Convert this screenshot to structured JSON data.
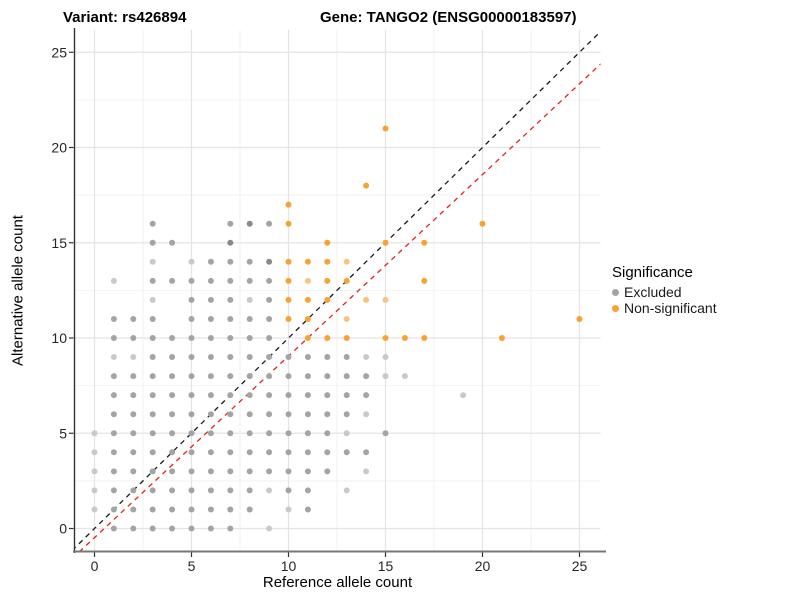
{
  "titles": {
    "left": "Variant: rs426894",
    "right": "Gene: TANGO2 (ENSG00000183597)"
  },
  "chart_data": {
    "type": "scatter",
    "xlabel": "Reference allele count",
    "ylabel": "Alternative allele count",
    "x_ticks": [
      0,
      5,
      10,
      15,
      20,
      25
    ],
    "y_ticks": [
      0,
      5,
      10,
      15,
      20,
      25
    ],
    "x_minor_ticks": [
      2.5,
      7.5,
      12.5,
      17.5,
      22.5
    ],
    "y_minor_ticks": [
      2.5,
      7.5,
      12.5,
      17.5,
      22.5
    ],
    "xlim": [
      -1.0,
      26.1
    ],
    "ylim": [
      -1.2,
      26.2
    ],
    "grid": true,
    "legend": {
      "title": "Significance",
      "position": "right",
      "items": [
        {
          "label": "Excluded",
          "color": "#a4a4a4"
        },
        {
          "label": "Non-significant",
          "color": "#f9a232"
        }
      ]
    },
    "lines": [
      {
        "name": "identity-line",
        "slope": 1.0,
        "intercept": 0.0,
        "color": "#1a1a1a",
        "dashed": true
      },
      {
        "name": "fit-line",
        "slope": 0.953,
        "intercept": -0.48,
        "color": "#e3211c",
        "dashed": true
      }
    ],
    "colors": {
      "excluded": "#a4a4a4",
      "excluded_light": "#c9c9c9",
      "excluded_dark": "#8a8a8a",
      "nonsig": "#f9a232",
      "nonsig_light": "#fbc27c",
      "grid_major": "#e4e4e4",
      "grid_minor": "#f2f2f2",
      "axis_line_left": "#333333",
      "axis_line_bottom": "#777777",
      "tick": "#333333"
    },
    "series": [
      {
        "name": "Excluded",
        "points": [
          [
            1,
            0
          ],
          [
            2,
            0
          ],
          [
            3,
            0
          ],
          [
            4,
            0
          ],
          [
            5,
            0
          ],
          [
            6,
            0
          ],
          [
            7,
            0
          ],
          [
            9,
            0,
            "l"
          ],
          [
            0,
            1,
            "l"
          ],
          [
            1,
            1
          ],
          [
            2,
            1
          ],
          [
            3,
            1
          ],
          [
            4,
            1
          ],
          [
            5,
            1
          ],
          [
            6,
            1
          ],
          [
            7,
            1
          ],
          [
            8,
            1
          ],
          [
            10,
            1,
            "l"
          ],
          [
            11,
            1
          ],
          [
            0,
            2,
            "l"
          ],
          [
            1,
            2
          ],
          [
            2,
            2
          ],
          [
            3,
            2
          ],
          [
            4,
            2
          ],
          [
            5,
            2
          ],
          [
            6,
            2
          ],
          [
            7,
            2
          ],
          [
            8,
            2
          ],
          [
            9,
            2,
            "l"
          ],
          [
            10,
            2
          ],
          [
            11,
            2
          ],
          [
            13,
            2,
            "l"
          ],
          [
            0,
            3,
            "l"
          ],
          [
            1,
            3
          ],
          [
            2,
            3
          ],
          [
            3,
            3
          ],
          [
            4,
            3
          ],
          [
            5,
            3
          ],
          [
            6,
            3
          ],
          [
            7,
            3
          ],
          [
            8,
            3
          ],
          [
            9,
            3
          ],
          [
            10,
            3
          ],
          [
            11,
            3
          ],
          [
            12,
            3
          ],
          [
            14,
            3,
            "l"
          ],
          [
            0,
            4,
            "l"
          ],
          [
            1,
            4
          ],
          [
            2,
            4
          ],
          [
            3,
            4
          ],
          [
            4,
            4
          ],
          [
            5,
            4
          ],
          [
            6,
            4
          ],
          [
            7,
            4
          ],
          [
            8,
            4
          ],
          [
            9,
            4
          ],
          [
            10,
            4
          ],
          [
            11,
            4
          ],
          [
            12,
            4
          ],
          [
            13,
            4
          ],
          [
            14,
            4
          ],
          [
            0,
            5,
            "l"
          ],
          [
            1,
            5
          ],
          [
            2,
            5
          ],
          [
            3,
            5
          ],
          [
            4,
            5
          ],
          [
            5,
            5
          ],
          [
            6,
            5
          ],
          [
            7,
            5
          ],
          [
            8,
            5
          ],
          [
            9,
            5
          ],
          [
            10,
            5
          ],
          [
            11,
            5
          ],
          [
            12,
            5
          ],
          [
            13,
            5,
            "l"
          ],
          [
            15,
            5
          ],
          [
            1,
            6
          ],
          [
            2,
            6
          ],
          [
            3,
            6
          ],
          [
            4,
            6
          ],
          [
            5,
            6
          ],
          [
            6,
            6
          ],
          [
            7,
            6
          ],
          [
            8,
            6
          ],
          [
            9,
            6
          ],
          [
            10,
            6
          ],
          [
            11,
            6
          ],
          [
            12,
            6
          ],
          [
            13,
            6
          ],
          [
            14,
            6,
            "l"
          ],
          [
            1,
            7
          ],
          [
            2,
            7
          ],
          [
            3,
            7
          ],
          [
            4,
            7
          ],
          [
            5,
            7
          ],
          [
            6,
            7
          ],
          [
            7,
            7
          ],
          [
            8,
            7
          ],
          [
            9,
            7
          ],
          [
            10,
            7
          ],
          [
            11,
            7
          ],
          [
            12,
            7
          ],
          [
            13,
            7
          ],
          [
            14,
            7
          ],
          [
            19,
            7,
            "l"
          ],
          [
            1,
            8
          ],
          [
            2,
            8
          ],
          [
            3,
            8
          ],
          [
            4,
            8
          ],
          [
            5,
            8
          ],
          [
            6,
            8
          ],
          [
            7,
            8
          ],
          [
            8,
            8
          ],
          [
            9,
            8
          ],
          [
            10,
            8
          ],
          [
            11,
            8
          ],
          [
            12,
            8
          ],
          [
            13,
            8
          ],
          [
            14,
            8
          ],
          [
            15,
            8,
            "l"
          ],
          [
            16,
            8,
            "l"
          ],
          [
            1,
            9,
            "l"
          ],
          [
            2,
            9,
            "l"
          ],
          [
            3,
            9
          ],
          [
            4,
            9
          ],
          [
            5,
            9
          ],
          [
            6,
            9
          ],
          [
            7,
            9
          ],
          [
            8,
            9
          ],
          [
            9,
            9
          ],
          [
            10,
            9
          ],
          [
            11,
            9
          ],
          [
            12,
            9
          ],
          [
            13,
            9
          ],
          [
            14,
            9,
            "l"
          ],
          [
            15,
            9,
            "l"
          ],
          [
            1,
            10
          ],
          [
            2,
            10
          ],
          [
            3,
            10
          ],
          [
            4,
            10
          ],
          [
            5,
            10
          ],
          [
            6,
            10
          ],
          [
            7,
            10
          ],
          [
            8,
            10
          ],
          [
            9,
            10
          ],
          [
            1,
            11
          ],
          [
            2,
            11
          ],
          [
            3,
            11
          ],
          [
            5,
            11
          ],
          [
            6,
            11
          ],
          [
            7,
            11
          ],
          [
            8,
            11
          ],
          [
            9,
            11
          ],
          [
            3,
            12,
            "l"
          ],
          [
            5,
            12
          ],
          [
            6,
            12
          ],
          [
            7,
            12
          ],
          [
            8,
            12,
            "l"
          ],
          [
            9,
            12
          ],
          [
            1,
            13,
            "l"
          ],
          [
            3,
            13
          ],
          [
            4,
            13
          ],
          [
            5,
            13
          ],
          [
            6,
            13
          ],
          [
            7,
            13
          ],
          [
            8,
            13
          ],
          [
            9,
            13
          ],
          [
            3,
            14,
            "l"
          ],
          [
            5,
            14,
            "l"
          ],
          [
            6,
            14
          ],
          [
            7,
            14
          ],
          [
            8,
            14
          ],
          [
            9,
            14,
            "d"
          ],
          [
            3,
            15
          ],
          [
            4,
            15
          ],
          [
            7,
            15,
            "d"
          ],
          [
            3,
            16
          ],
          [
            7,
            16
          ],
          [
            8,
            16,
            "d"
          ],
          [
            9,
            16
          ]
        ]
      },
      {
        "name": "Non-significant",
        "points": [
          [
            11,
            10
          ],
          [
            12,
            10
          ],
          [
            13,
            10
          ],
          [
            15,
            10
          ],
          [
            16,
            10
          ],
          [
            17,
            10
          ],
          [
            21,
            10
          ],
          [
            10,
            11
          ],
          [
            11,
            11
          ],
          [
            13,
            11,
            "l"
          ],
          [
            25,
            11
          ],
          [
            10,
            12
          ],
          [
            11,
            12
          ],
          [
            12,
            12
          ],
          [
            14,
            12,
            "l"
          ],
          [
            15,
            12,
            "l"
          ],
          [
            10,
            13
          ],
          [
            11,
            13,
            "l"
          ],
          [
            12,
            13
          ],
          [
            13,
            13
          ],
          [
            17,
            13
          ],
          [
            10,
            14
          ],
          [
            11,
            14
          ],
          [
            12,
            14
          ],
          [
            13,
            14,
            "l"
          ],
          [
            12,
            15
          ],
          [
            15,
            15
          ],
          [
            17,
            15
          ],
          [
            10,
            16
          ],
          [
            20,
            16
          ],
          [
            10,
            17
          ],
          [
            14,
            18
          ],
          [
            15,
            21
          ]
        ]
      }
    ]
  }
}
